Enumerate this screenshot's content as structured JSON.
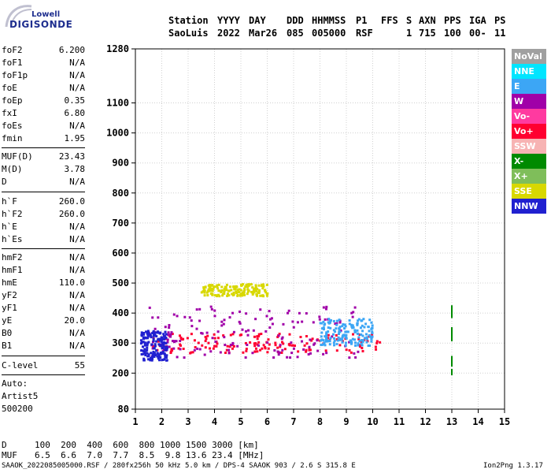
{
  "logo": {
    "line1": "Lowell",
    "line2": "DIGISONDE"
  },
  "header": {
    "labels": [
      "Station",
      "YYYY",
      "DAY",
      "DDD",
      "HHMMSS",
      "P1",
      "FFS",
      "S",
      "AXN",
      "PPS",
      "IGA",
      "PS"
    ],
    "values": [
      "SaoLuis",
      "2022",
      "Mar26",
      "085",
      "005000",
      "RSF",
      "",
      "1",
      "715",
      "100",
      "00-",
      "11"
    ]
  },
  "params": [
    {
      "label": "foF2",
      "value": "6.200"
    },
    {
      "label": "foF1",
      "value": "N/A"
    },
    {
      "label": "foF1p",
      "value": "N/A"
    },
    {
      "label": "foE",
      "value": "N/A"
    },
    {
      "label": "foEp",
      "value": "0.35"
    },
    {
      "label": "fxI",
      "value": "6.80"
    },
    {
      "label": "foEs",
      "value": "N/A"
    },
    {
      "label": "fmin",
      "value": "1.95"
    },
    {
      "label": "MUF(D)",
      "value": "23.43"
    },
    {
      "label": "M(D)",
      "value": "3.78"
    },
    {
      "label": "D",
      "value": "N/A"
    },
    {
      "label": "h`F",
      "value": "260.0"
    },
    {
      "label": "h`F2",
      "value": "260.0"
    },
    {
      "label": "h`E",
      "value": "N/A"
    },
    {
      "label": "h`Es",
      "value": "N/A"
    },
    {
      "label": "hmF2",
      "value": "N/A"
    },
    {
      "label": "hmF1",
      "value": "N/A"
    },
    {
      "label": "hmE",
      "value": "110.0"
    },
    {
      "label": "yF2",
      "value": "N/A"
    },
    {
      "label": "yF1",
      "value": "N/A"
    },
    {
      "label": "yE",
      "value": "20.0"
    },
    {
      "label": "B0",
      "value": "N/A"
    },
    {
      "label": "B1",
      "value": "N/A"
    },
    {
      "label": "C-level",
      "value": "55"
    }
  ],
  "autoscale": {
    "line1": "Auto:",
    "line2": "Artist5",
    "line3": "500200"
  },
  "legend": [
    {
      "label": "NoVal",
      "color": "#a0a0a0"
    },
    {
      "label": "NNE",
      "color": "#00e5ff"
    },
    {
      "label": "E",
      "color": "#3ca6f5"
    },
    {
      "label": "W",
      "color": "#a000a8"
    },
    {
      "label": "Vo-",
      "color": "#ff3aa0"
    },
    {
      "label": "Vo+",
      "color": "#ff0030"
    },
    {
      "label": "SSW",
      "color": "#f7b3b3"
    },
    {
      "label": "X-",
      "color": "#008a00"
    },
    {
      "label": "X+",
      "color": "#7fbe5a"
    },
    {
      "label": "SSE",
      "color": "#d8d800"
    },
    {
      "label": "NNW",
      "color": "#2020d0"
    }
  ],
  "muf_table": {
    "d_label": "D",
    "d_values": "100  200  400  600  800 1000 1500 3000 [km]",
    "muf_label": "MUF",
    "muf_values": "6.5  6.6  7.0  7.7  8.5  9.8 13.6 23.4 [MHz]"
  },
  "footer": "SAAOK_2022085005000.RSF / 280fx256h 50 kHz 5.0 km / DPS-4 SAAOK 903 / 2.6 S 315.8 E",
  "version": "Ion2Png 1.3.17",
  "chart_data": {
    "type": "scatter",
    "title": "",
    "xlabel": "",
    "ylabel": "",
    "xlim": [
      1,
      15
    ],
    "ylim": [
      80,
      1280
    ],
    "xticks": [
      1,
      2,
      3,
      4,
      5,
      6,
      7,
      8,
      9,
      10,
      11,
      12,
      13,
      14,
      15
    ],
    "yticks": [
      80,
      200,
      300,
      400,
      500,
      600,
      700,
      800,
      900,
      1000,
      1100,
      1280
    ],
    "grid": true,
    "series": [
      {
        "name": "Vo+",
        "color": "#ff0030",
        "x_range": [
          1.6,
          10.5
        ],
        "h_range": [
          265,
          330
        ]
      },
      {
        "name": "W",
        "color": "#a000a8",
        "x_range": [
          1.5,
          9.5
        ],
        "h_range": [
          250,
          420
        ]
      },
      {
        "name": "NNW",
        "color": "#2020d0",
        "x_range": [
          1.2,
          2.2
        ],
        "h_range": [
          240,
          340
        ]
      },
      {
        "name": "E",
        "color": "#3ca6f5",
        "x_range": [
          8.0,
          10.0
        ],
        "h_range": [
          290,
          380
        ]
      },
      {
        "name": "SSE",
        "color": "#d8d800",
        "x_range": [
          3.5,
          6.0
        ],
        "h_range": [
          455,
          495
        ]
      },
      {
        "name": "X-",
        "color": "#008a00",
        "x": [
          13.0
        ],
        "h_range": [
          80,
          450
        ]
      }
    ]
  }
}
